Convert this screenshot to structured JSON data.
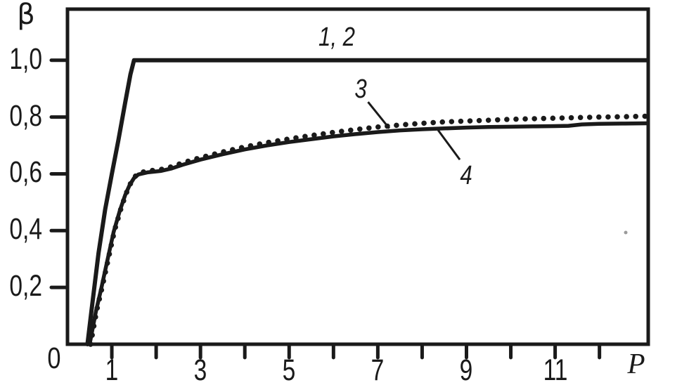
{
  "figure": {
    "background_color": "#ffffff",
    "ink_color": "#1a1a1a",
    "artifact_speck_color": "#9a9a9a"
  },
  "chart_data": {
    "type": "line",
    "title": "",
    "xlabel": "P",
    "ylabel": "β",
    "xlim": [
      0,
      13.1
    ],
    "ylim": [
      0,
      1.18
    ],
    "grid": false,
    "frame": true,
    "legend": "inline-annotations",
    "x_axis": {
      "label": "P",
      "origin_label": "0",
      "tick_values": [
        1,
        2,
        3,
        4,
        5,
        6,
        7,
        8,
        9,
        10,
        11,
        12
      ],
      "tick_labels": [
        {
          "value": 1,
          "label": "1"
        },
        {
          "value": 3,
          "label": "3"
        },
        {
          "value": 5,
          "label": "5"
        },
        {
          "value": 7,
          "label": "7"
        },
        {
          "value": 9,
          "label": "9"
        },
        {
          "value": 11,
          "label": "11"
        }
      ]
    },
    "y_axis": {
      "label": "β",
      "tick_labels": [
        {
          "value": 0.2,
          "label": "0,2"
        },
        {
          "value": 0.4,
          "label": "0,4"
        },
        {
          "value": 0.6,
          "label": "0,6"
        },
        {
          "value": 0.8,
          "label": "0,8"
        },
        {
          "value": 1.0,
          "label": "1,0"
        }
      ]
    },
    "series": [
      {
        "name": "1, 2",
        "line_style": "solid",
        "stroke_width": 6,
        "points": [
          [
            0.45,
            0
          ],
          [
            0.55,
            0.13
          ],
          [
            0.7,
            0.32
          ],
          [
            0.85,
            0.475
          ],
          [
            1.0,
            0.6
          ],
          [
            1.15,
            0.72
          ],
          [
            1.3,
            0.85
          ],
          [
            1.42,
            0.95
          ],
          [
            1.5,
            1.0
          ],
          [
            13.08,
            1.0
          ]
        ]
      },
      {
        "name": "3",
        "line_style": "dotted",
        "stroke_width": 7.5,
        "points": [
          [
            0.52,
            0
          ],
          [
            0.66,
            0.12
          ],
          [
            0.78,
            0.2
          ],
          [
            0.92,
            0.3
          ],
          [
            1.06,
            0.4
          ],
          [
            1.2,
            0.475
          ],
          [
            1.32,
            0.53
          ],
          [
            1.42,
            0.565
          ],
          [
            1.52,
            0.59
          ],
          [
            1.62,
            0.603
          ],
          [
            1.8,
            0.61
          ],
          [
            2.1,
            0.615
          ],
          [
            2.35,
            0.625
          ],
          [
            2.6,
            0.639
          ],
          [
            3.0,
            0.657
          ],
          [
            3.5,
            0.677
          ],
          [
            4.0,
            0.695
          ],
          [
            4.5,
            0.71
          ],
          [
            5.0,
            0.723
          ],
          [
            5.5,
            0.735
          ],
          [
            6.0,
            0.746
          ],
          [
            6.5,
            0.756
          ],
          [
            7.0,
            0.765
          ],
          [
            7.5,
            0.772
          ],
          [
            8.0,
            0.778
          ],
          [
            8.5,
            0.783
          ],
          [
            9.0,
            0.786
          ],
          [
            9.5,
            0.789
          ],
          [
            10.0,
            0.792
          ],
          [
            10.5,
            0.794
          ],
          [
            11.0,
            0.796
          ],
          [
            11.5,
            0.798
          ],
          [
            12.0,
            0.8
          ],
          [
            12.5,
            0.801
          ],
          [
            13.08,
            0.803
          ]
        ]
      },
      {
        "name": "4",
        "line_style": "solid",
        "stroke_width": 5.5,
        "points": [
          [
            0.5,
            0
          ],
          [
            0.64,
            0.115
          ],
          [
            0.76,
            0.195
          ],
          [
            0.9,
            0.295
          ],
          [
            1.04,
            0.395
          ],
          [
            1.18,
            0.47
          ],
          [
            1.3,
            0.525
          ],
          [
            1.4,
            0.56
          ],
          [
            1.5,
            0.585
          ],
          [
            1.6,
            0.598
          ],
          [
            1.8,
            0.605
          ],
          [
            2.1,
            0.61
          ],
          [
            2.35,
            0.619
          ],
          [
            2.6,
            0.632
          ],
          [
            3.0,
            0.65
          ],
          [
            3.5,
            0.669
          ],
          [
            4.0,
            0.686
          ],
          [
            4.5,
            0.7
          ],
          [
            5.0,
            0.712
          ],
          [
            5.5,
            0.722
          ],
          [
            6.0,
            0.732
          ],
          [
            6.5,
            0.74
          ],
          [
            7.0,
            0.747
          ],
          [
            7.5,
            0.753
          ],
          [
            8.0,
            0.757
          ],
          [
            8.5,
            0.76
          ],
          [
            9.0,
            0.763
          ],
          [
            9.5,
            0.765
          ],
          [
            10.0,
            0.766
          ],
          [
            10.5,
            0.767
          ],
          [
            11.0,
            0.768
          ],
          [
            11.3,
            0.769
          ],
          [
            11.6,
            0.774
          ],
          [
            12.0,
            0.776
          ],
          [
            12.5,
            0.777
          ],
          [
            13.08,
            0.778
          ]
        ]
      }
    ],
    "annotations": [
      {
        "text": "1, 2",
        "x": 6.07,
        "y": 1.08
      },
      {
        "text": "3",
        "x": 6.62,
        "y": 0.897,
        "leader": {
          "from": [
            6.78,
            0.853
          ],
          "to": [
            7.26,
            0.76
          ]
        }
      },
      {
        "text": "4",
        "x": 9.0,
        "y": 0.593,
        "leader": {
          "from": [
            8.36,
            0.754
          ],
          "to": [
            8.85,
            0.65
          ]
        }
      }
    ]
  }
}
